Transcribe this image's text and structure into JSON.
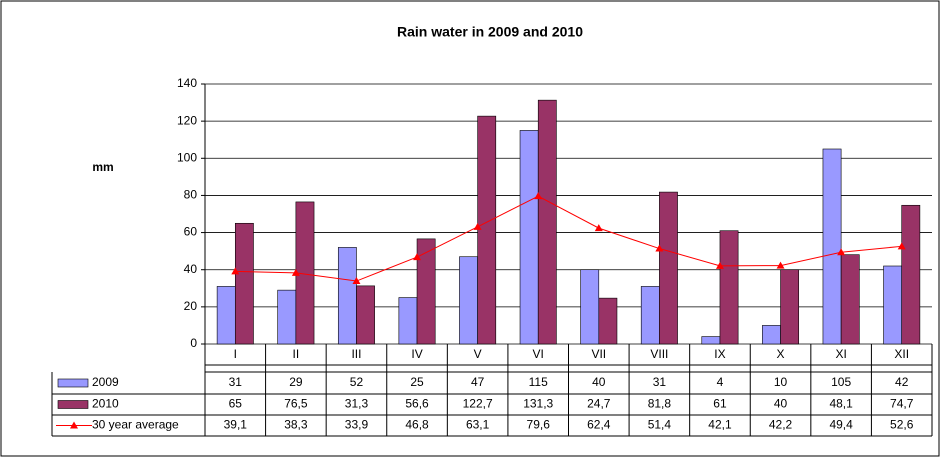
{
  "chart_data": {
    "type": "bar",
    "title": "Rain water in 2009 and 2010",
    "y_label": "mm",
    "categories": [
      "I",
      "II",
      "III",
      "IV",
      "V",
      "VI",
      "VII",
      "VIII",
      "IX",
      "X",
      "XI",
      "XII"
    ],
    "series": [
      {
        "name": "2009",
        "type": "bar",
        "color": "#9999ff",
        "values": [
          31,
          29,
          52,
          25,
          47,
          115,
          40,
          31,
          4,
          10,
          105,
          42
        ]
      },
      {
        "name": "2010",
        "type": "bar",
        "color": "#993366",
        "values": [
          65,
          76.5,
          31.3,
          56.6,
          122.7,
          131.3,
          24.7,
          81.8,
          61,
          40,
          48.1,
          74.7
        ],
        "value_labels": [
          "65",
          "76,5",
          "31,3",
          "56,6",
          "122,7",
          "131,3",
          "24,7",
          "81,8",
          "61",
          "40",
          "48,1",
          "74,7"
        ]
      },
      {
        "name": "30 year average",
        "type": "line",
        "color": "#ff0000",
        "values": [
          39.1,
          38.3,
          33.9,
          46.8,
          63.1,
          79.6,
          62.4,
          51.4,
          42.1,
          42.2,
          49.4,
          52.6
        ],
        "value_labels": [
          "39,1",
          "38,3",
          "33,9",
          "46,8",
          "63,1",
          "79,6",
          "62,4",
          "51,4",
          "42,1",
          "42,2",
          "49,4",
          "52,6"
        ]
      }
    ],
    "ylim": [
      0,
      140
    ],
    "yticks": [
      0,
      20,
      40,
      60,
      80,
      100,
      120,
      140
    ],
    "grid": true,
    "data_table": true
  }
}
